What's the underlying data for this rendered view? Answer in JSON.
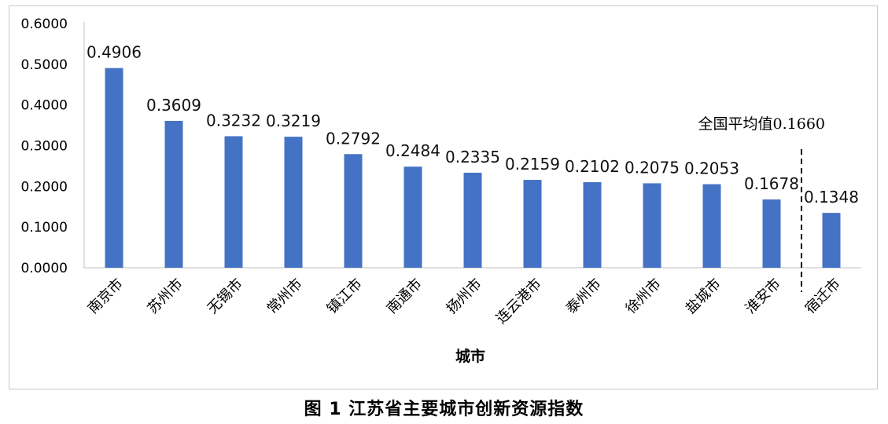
{
  "caption": "图 1 江苏省主要城市创新资源指数",
  "chart_data": {
    "type": "bar",
    "title": "",
    "xlabel": "城市",
    "ylabel": "",
    "ylim": [
      0,
      0.6
    ],
    "yticks": [
      "0.0000",
      "0.1000",
      "0.2000",
      "0.3000",
      "0.4000",
      "0.5000",
      "0.6000"
    ],
    "categories": [
      "南京市",
      "苏州市",
      "无锡市",
      "常州市",
      "镇江市",
      "南通市",
      "扬州市",
      "连云港市",
      "泰州市",
      "徐州市",
      "盐城市",
      "淮安市",
      "宿迁市"
    ],
    "values": [
      0.4906,
      0.3609,
      0.3232,
      0.3219,
      0.2792,
      0.2484,
      0.2335,
      0.2159,
      0.2102,
      0.2075,
      0.2053,
      0.1678,
      0.1348
    ],
    "data_labels": [
      "0.4906",
      "0.3609",
      "0.3232",
      "0.3219",
      "0.2792",
      "0.2484",
      "0.2335",
      "0.2159",
      "0.2102",
      "0.2075",
      "0.2053",
      "0.1678",
      "0.1348"
    ],
    "bar_color": "#4472C4",
    "grid": false,
    "legend": "none",
    "reference_line": {
      "label": "全国平均值0.1660",
      "between_categories": [
        "淮安市",
        "宿迁市"
      ],
      "style": "dashed-vertical"
    }
  }
}
